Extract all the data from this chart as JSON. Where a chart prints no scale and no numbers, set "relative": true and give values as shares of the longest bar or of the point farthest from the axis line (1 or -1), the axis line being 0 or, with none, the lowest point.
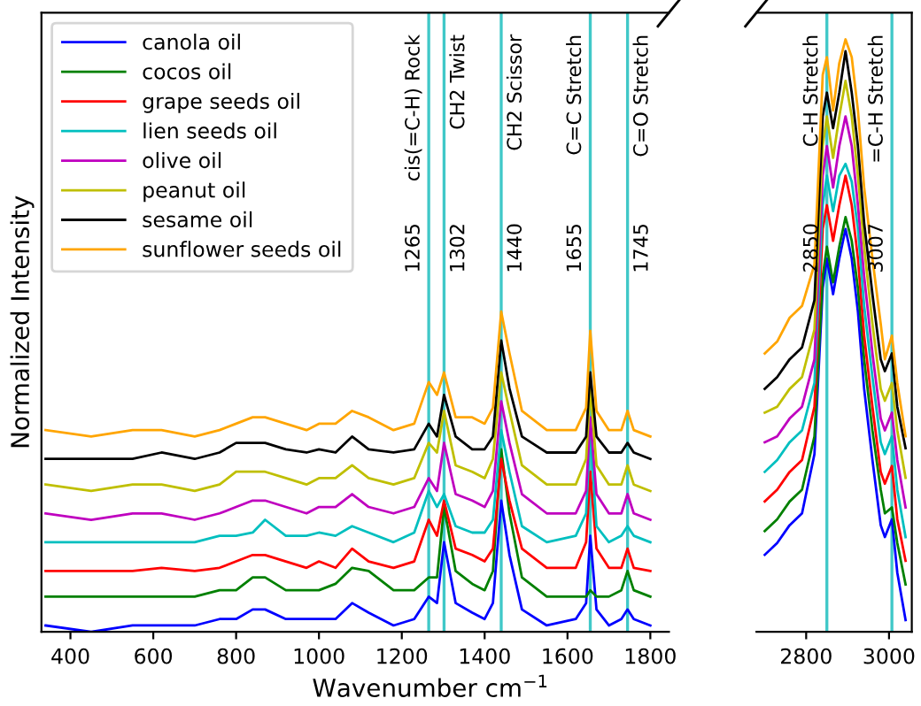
{
  "chart_data": [
    {
      "type": "line",
      "xlabel": "Wavenumber cm$^{−1}$",
      "ylabel": "Normalized Intensity",
      "relative": true,
      "xlim": [
        330,
        1845
      ],
      "xticks": [
        400,
        600,
        800,
        1000,
        1200,
        1400,
        1600,
        1800
      ],
      "grid": false,
      "legend": "top left",
      "x": [
        340,
        450,
        550,
        620,
        700,
        760,
        800,
        840,
        870,
        920,
        970,
        1000,
        1040,
        1080,
        1120,
        1180,
        1230,
        1265,
        1285,
        1302,
        1330,
        1370,
        1400,
        1420,
        1440,
        1460,
        1490,
        1550,
        1620,
        1645,
        1655,
        1670,
        1700,
        1730,
        1745,
        1760,
        1800
      ],
      "series": [
        {
          "name": "canola oil",
          "color": "#0000ff",
          "values": [
            0.02,
            0.0,
            0.02,
            0.02,
            0.02,
            0.04,
            0.04,
            0.07,
            0.07,
            0.04,
            0.04,
            0.04,
            0.04,
            0.09,
            0.06,
            0.02,
            0.04,
            0.11,
            0.09,
            0.28,
            0.09,
            0.06,
            0.04,
            0.09,
            0.41,
            0.24,
            0.07,
            0.02,
            0.04,
            0.09,
            0.3,
            0.07,
            0.02,
            0.04,
            0.07,
            0.04,
            0.02
          ]
        },
        {
          "name": "cocos oil",
          "color": "#008000",
          "values": [
            0.11,
            0.11,
            0.11,
            0.11,
            0.11,
            0.13,
            0.13,
            0.17,
            0.17,
            0.13,
            0.13,
            0.13,
            0.15,
            0.2,
            0.19,
            0.13,
            0.13,
            0.17,
            0.17,
            0.39,
            0.19,
            0.15,
            0.13,
            0.19,
            0.57,
            0.37,
            0.17,
            0.11,
            0.11,
            0.11,
            0.13,
            0.11,
            0.11,
            0.13,
            0.19,
            0.13,
            0.11
          ]
        },
        {
          "name": "grape seeds oil",
          "color": "#ff0000",
          "values": [
            0.19,
            0.19,
            0.19,
            0.2,
            0.19,
            0.2,
            0.22,
            0.24,
            0.24,
            0.22,
            0.2,
            0.22,
            0.2,
            0.26,
            0.22,
            0.2,
            0.22,
            0.35,
            0.3,
            0.41,
            0.26,
            0.24,
            0.22,
            0.26,
            0.54,
            0.41,
            0.26,
            0.2,
            0.2,
            0.28,
            0.5,
            0.26,
            0.2,
            0.2,
            0.26,
            0.2,
            0.19
          ]
        },
        {
          "name": "lien seeds oil",
          "color": "#00bfbf",
          "values": [
            0.28,
            0.28,
            0.28,
            0.28,
            0.28,
            0.3,
            0.3,
            0.31,
            0.35,
            0.3,
            0.3,
            0.31,
            0.3,
            0.33,
            0.31,
            0.28,
            0.31,
            0.44,
            0.39,
            0.43,
            0.33,
            0.31,
            0.31,
            0.35,
            0.63,
            0.5,
            0.33,
            0.28,
            0.3,
            0.37,
            0.63,
            0.33,
            0.28,
            0.3,
            0.33,
            0.3,
            0.28
          ]
        },
        {
          "name": "olive oil",
          "color": "#bf00bf",
          "values": [
            0.37,
            0.35,
            0.37,
            0.37,
            0.35,
            0.37,
            0.39,
            0.41,
            0.41,
            0.39,
            0.37,
            0.39,
            0.39,
            0.43,
            0.39,
            0.37,
            0.39,
            0.48,
            0.44,
            0.59,
            0.43,
            0.41,
            0.39,
            0.44,
            0.72,
            0.59,
            0.43,
            0.37,
            0.37,
            0.44,
            0.67,
            0.43,
            0.37,
            0.37,
            0.43,
            0.37,
            0.35
          ]
        },
        {
          "name": "peanut oil",
          "color": "#bfbf00",
          "values": [
            0.46,
            0.44,
            0.46,
            0.46,
            0.44,
            0.46,
            0.5,
            0.5,
            0.5,
            0.48,
            0.46,
            0.48,
            0.48,
            0.52,
            0.48,
            0.46,
            0.48,
            0.59,
            0.56,
            0.69,
            0.52,
            0.5,
            0.48,
            0.54,
            0.81,
            0.69,
            0.52,
            0.46,
            0.46,
            0.54,
            0.76,
            0.52,
            0.46,
            0.46,
            0.52,
            0.46,
            0.44
          ]
        },
        {
          "name": "sesame oil",
          "color": "#000000",
          "values": [
            0.54,
            0.54,
            0.54,
            0.56,
            0.54,
            0.56,
            0.59,
            0.59,
            0.59,
            0.57,
            0.56,
            0.57,
            0.56,
            0.61,
            0.57,
            0.56,
            0.57,
            0.65,
            0.61,
            0.74,
            0.61,
            0.57,
            0.57,
            0.61,
            0.91,
            0.76,
            0.61,
            0.56,
            0.56,
            0.61,
            0.81,
            0.61,
            0.56,
            0.56,
            0.59,
            0.56,
            0.54
          ]
        },
        {
          "name": "sunflower seeds oil",
          "color": "#ffa500",
          "values": [
            0.63,
            0.61,
            0.63,
            0.63,
            0.61,
            0.63,
            0.65,
            0.67,
            0.67,
            0.65,
            0.63,
            0.65,
            0.65,
            0.69,
            0.67,
            0.63,
            0.65,
            0.78,
            0.74,
            0.81,
            0.67,
            0.67,
            0.65,
            0.7,
            1.0,
            0.87,
            0.69,
            0.63,
            0.63,
            0.7,
            0.94,
            0.69,
            0.63,
            0.63,
            0.69,
            0.63,
            0.61
          ]
        }
      ],
      "ref_lines": [
        {
          "axis": "x",
          "value": 1265,
          "label": "cis(=C-H) Rock",
          "color": "#40c8c8"
        },
        {
          "axis": "x",
          "value": 1302,
          "label": "CH2 Twist",
          "color": "#40c8c8"
        },
        {
          "axis": "x",
          "value": 1440,
          "label": "CH2 Scissor",
          "color": "#40c8c8"
        },
        {
          "axis": "x",
          "value": 1655,
          "label": "C=C Stretch",
          "color": "#40c8c8"
        },
        {
          "axis": "x",
          "value": 1745,
          "label": "C=O Stretch",
          "color": "#40c8c8"
        }
      ],
      "annotations": [
        {
          "text": "1265",
          "x": 1265
        },
        {
          "text": "1302",
          "x": 1302
        },
        {
          "text": "1440",
          "x": 1440
        },
        {
          "text": "1655",
          "x": 1655
        },
        {
          "text": "1745",
          "x": 1745
        }
      ]
    },
    {
      "type": "line",
      "relative": true,
      "xlim": [
        2680,
        3055
      ],
      "xticks": [
        2800,
        3000
      ],
      "grid": false,
      "x": [
        2700,
        2730,
        2760,
        2790,
        2820,
        2840,
        2850,
        2865,
        2880,
        2895,
        2910,
        2925,
        2940,
        2960,
        2980,
        2990,
        3007,
        3020,
        3040
      ],
      "series": [
        {
          "color": "#0000ff",
          "values": [
            0.13,
            0.15,
            0.18,
            0.2,
            0.3,
            0.58,
            0.63,
            0.57,
            0.63,
            0.68,
            0.63,
            0.54,
            0.41,
            0.29,
            0.18,
            0.16,
            0.19,
            0.1,
            0.02
          ]
        },
        {
          "color": "#008000",
          "values": [
            0.17,
            0.19,
            0.22,
            0.24,
            0.33,
            0.6,
            0.65,
            0.59,
            0.65,
            0.7,
            0.66,
            0.58,
            0.46,
            0.34,
            0.24,
            0.2,
            0.21,
            0.15,
            0.08
          ]
        },
        {
          "color": "#ff0000",
          "values": [
            0.22,
            0.24,
            0.27,
            0.29,
            0.38,
            0.68,
            0.72,
            0.66,
            0.72,
            0.77,
            0.72,
            0.63,
            0.5,
            0.38,
            0.27,
            0.25,
            0.28,
            0.19,
            0.12
          ]
        },
        {
          "color": "#00bfbf",
          "values": [
            0.27,
            0.29,
            0.32,
            0.34,
            0.42,
            0.72,
            0.77,
            0.71,
            0.77,
            0.79,
            0.76,
            0.68,
            0.55,
            0.43,
            0.32,
            0.3,
            0.33,
            0.24,
            0.16
          ]
        },
        {
          "color": "#bf00bf",
          "values": [
            0.32,
            0.33,
            0.36,
            0.38,
            0.46,
            0.77,
            0.82,
            0.75,
            0.82,
            0.87,
            0.82,
            0.72,
            0.6,
            0.47,
            0.36,
            0.34,
            0.37,
            0.29,
            0.21
          ]
        },
        {
          "color": "#bfbf00",
          "values": [
            0.37,
            0.38,
            0.41,
            0.43,
            0.51,
            0.82,
            0.87,
            0.8,
            0.87,
            0.93,
            0.87,
            0.77,
            0.65,
            0.52,
            0.41,
            0.39,
            0.42,
            0.34,
            0.26
          ]
        },
        {
          "color": "#000000",
          "values": [
            0.41,
            0.43,
            0.46,
            0.48,
            0.56,
            0.87,
            0.91,
            0.85,
            0.91,
            0.98,
            0.91,
            0.82,
            0.69,
            0.57,
            0.46,
            0.44,
            0.47,
            0.38,
            0.31
          ]
        },
        {
          "color": "#ffa500",
          "values": [
            0.47,
            0.49,
            0.53,
            0.55,
            0.62,
            0.94,
            0.97,
            0.88,
            0.96,
            1.0,
            0.97,
            0.88,
            0.75,
            0.63,
            0.52,
            0.46,
            0.5,
            0.42,
            0.33
          ]
        }
      ],
      "ref_lines": [
        {
          "axis": "x",
          "value": 2850,
          "label": "C-H Stretch",
          "color": "#40c8c8"
        },
        {
          "axis": "x",
          "value": 3007,
          "label": "=C-H Stretch",
          "color": "#40c8c8"
        }
      ],
      "annotations": [
        {
          "text": "2850",
          "x": 2850
        },
        {
          "text": "3007",
          "x": 3007
        }
      ]
    }
  ]
}
